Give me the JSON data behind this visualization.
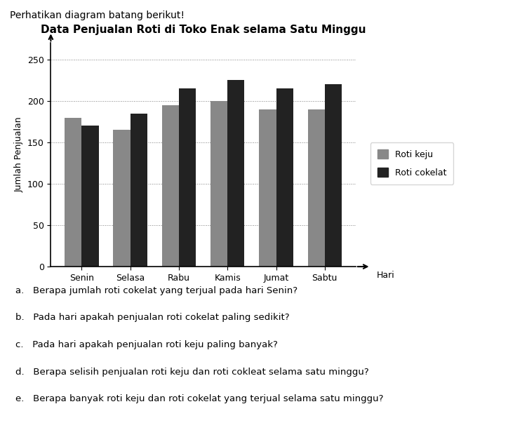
{
  "title": "Data Penjualan Roti di Toko Enak selama Satu Minggu",
  "header": "Perhatikan diagram batang berikut!",
  "days": [
    "Senin",
    "Selasa",
    "Rabu",
    "Kamis",
    "Jumat",
    "Sabtu"
  ],
  "roti_keju": [
    180,
    165,
    195,
    200,
    190,
    190
  ],
  "roti_cokelat": [
    170,
    185,
    215,
    225,
    215,
    220
  ],
  "ylabel": "Jumlah Penjualan",
  "xlabel": "Hari",
  "yticks": [
    0,
    50,
    100,
    150,
    200,
    250
  ],
  "ylim": [
    0,
    270
  ],
  "color_keju": "#888888",
  "color_cokelat": "#222222",
  "legend_keju": "Roti keju",
  "legend_cokelat": "Roti cokelat",
  "questions": [
    "a.   Berapa jumlah roti cokelat yang terjual pada hari Senin?",
    "b.   Pada hari apakah penjualan roti cokelat paling sedikit?",
    "c.   Pada hari apakah penjualan roti keju paling banyak?",
    "d.   Berapa selisih penjualan roti keju dan roti cokleat selama satu minggu?",
    "e.   Berapa banyak roti keju dan roti cokelat yang terjual selama satu minggu?"
  ],
  "bar_width": 0.35
}
